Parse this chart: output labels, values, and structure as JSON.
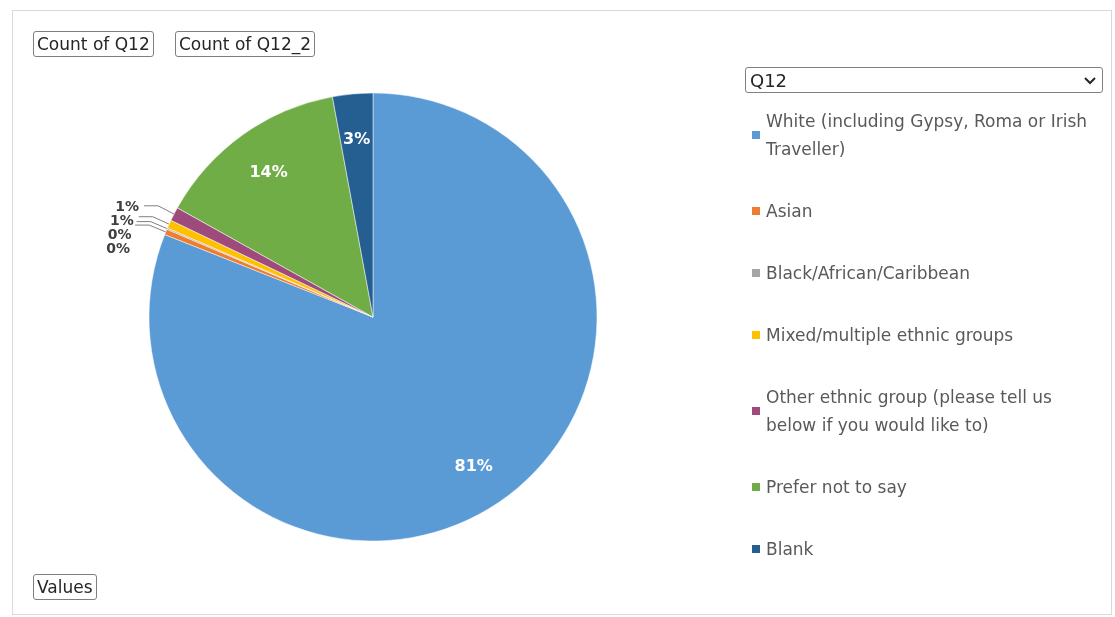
{
  "chart_data": {
    "type": "pie",
    "legend_title": "Q12",
    "legend": "right",
    "categories": [
      "White (including Gypsy, Roma or Irish Traveller)",
      "Asian",
      "Black/African/Caribbean",
      "Mixed/multiple ethnic groups",
      "Other ethnic group (please tell us below if you would like to)",
      "Prefer not to say",
      "Blank"
    ],
    "values": [
      81,
      0.4,
      0.1,
      0.6,
      1,
      14,
      2.9
    ],
    "colors": [
      "#5b9bd5",
      "#ed7d31",
      "#a5a5a5",
      "#ffc000",
      "#9e4a7a",
      "#70ad47",
      "#255e91"
    ],
    "value_labels": [
      "81%",
      "0%",
      "0%",
      "1%",
      "1%",
      "14%",
      "3%"
    ],
    "annotations": [
      "Count of Q12",
      "Count of Q12_2",
      "Values"
    ]
  }
}
